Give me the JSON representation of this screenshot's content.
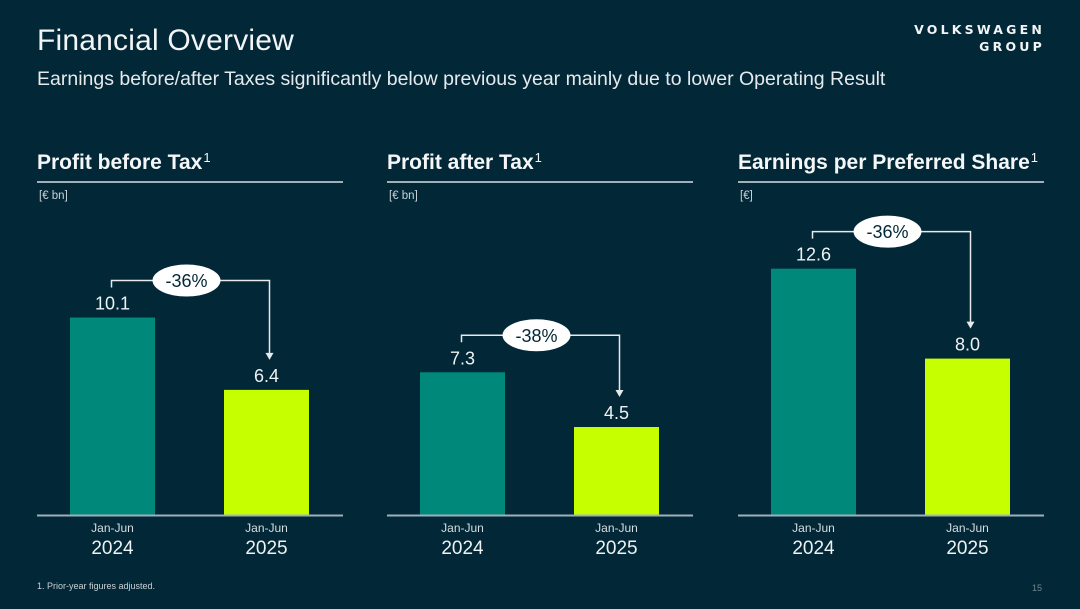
{
  "header": {
    "title": "Financial Overview",
    "subtitle": "Earnings before/after Taxes significantly below previous year mainly due to lower Operating Result",
    "logo_line1": "VOLKSWAGEN",
    "logo_line2": "GROUP"
  },
  "colors": {
    "background": "#022737",
    "bar_2024": "#00897b",
    "bar_2025": "#c6ff00",
    "annotation_bubble": "#ffffff",
    "annotation_text": "#022737"
  },
  "chart_data": [
    {
      "type": "bar",
      "title": "Profit before Tax",
      "title_footnote": "1",
      "unit": "[€ bn]",
      "categories": [
        {
          "period": "Jan-Jun",
          "year": "2024"
        },
        {
          "period": "Jan-Jun",
          "year": "2025"
        }
      ],
      "values": [
        10.1,
        6.4
      ],
      "value_labels": [
        "10.1",
        "6.4"
      ],
      "change_label": "-36%",
      "ylim": [
        0,
        13
      ],
      "grid": false
    },
    {
      "type": "bar",
      "title": "Profit after Tax",
      "title_footnote": "1",
      "unit": "[€ bn]",
      "categories": [
        {
          "period": "Jan-Jun",
          "year": "2024"
        },
        {
          "period": "Jan-Jun",
          "year": "2025"
        }
      ],
      "values": [
        7.3,
        4.5
      ],
      "value_labels": [
        "7.3",
        "4.5"
      ],
      "change_label": "-38%",
      "ylim": [
        0,
        13
      ],
      "grid": false
    },
    {
      "type": "bar",
      "title": "Earnings per Preferred Share",
      "title_footnote": "1",
      "unit": "[€]",
      "categories": [
        {
          "period": "Jan-Jun",
          "year": "2024"
        },
        {
          "period": "Jan-Jun",
          "year": "2025"
        }
      ],
      "values": [
        12.6,
        8.0
      ],
      "value_labels": [
        "12.6",
        "8.0"
      ],
      "change_label": "-36%",
      "ylim": [
        0,
        13
      ],
      "grid": false
    }
  ],
  "footer": {
    "footnote": "1. Prior-year figures adjusted.",
    "page_number": "15"
  }
}
